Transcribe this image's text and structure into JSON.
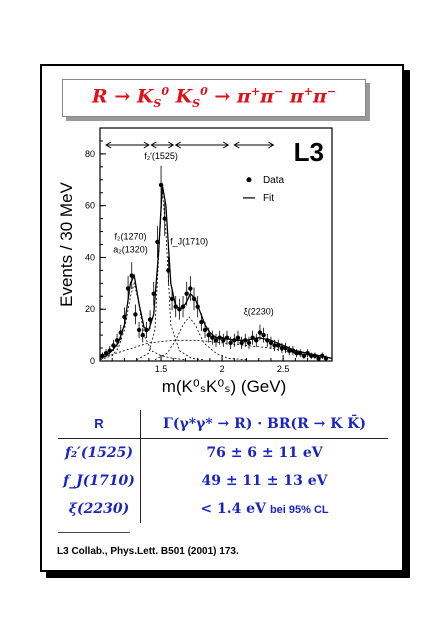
{
  "title": {
    "main": "R → K",
    "k1_sub": "S",
    "k1_sup": "0",
    "k2": "K",
    "k2_sub": "S",
    "k2_sup": "0",
    "rest": "→ π",
    "p1": "+",
    "pi2": "π",
    "p2": "−",
    "pi3": " π",
    "p3": "+",
    "pi4": "π",
    "p4": "−"
  },
  "chart_data": {
    "type": "scatter",
    "experiment_label": "L3",
    "ylabel": "Events / 30 MeV",
    "xlabel": "m(K⁰ₛK⁰ₛ) (GeV)",
    "xlim": [
      1.0,
      2.9
    ],
    "ylim": [
      0,
      90
    ],
    "x_ticks": [
      "1.5",
      "2",
      "2.5"
    ],
    "y_ticks": [
      "0",
      "20",
      "40",
      "60",
      "80"
    ],
    "legend": {
      "data": "Data",
      "fit": "Fit",
      "position": "top-right"
    },
    "annotations": [
      {
        "text": "f₂′(1525)",
        "x": 1.5,
        "y": 78
      },
      {
        "text": "f₂(1270)",
        "x": 1.25,
        "y": 47
      },
      {
        "text": "a₂(1320)",
        "x": 1.25,
        "y": 42
      },
      {
        "text": "f_J(1710)",
        "x": 1.73,
        "y": 45
      },
      {
        "text": "ξ(2230)",
        "x": 2.3,
        "y": 18
      }
    ],
    "arrows": [
      [
        1.05,
        1.4
      ],
      [
        1.42,
        1.6
      ],
      [
        1.62,
        2.05
      ],
      [
        2.1,
        2.42
      ]
    ],
    "series": [
      {
        "name": "Data",
        "x": [
          1.02,
          1.05,
          1.08,
          1.11,
          1.14,
          1.17,
          1.2,
          1.23,
          1.26,
          1.29,
          1.32,
          1.35,
          1.38,
          1.41,
          1.44,
          1.47,
          1.5,
          1.53,
          1.56,
          1.59,
          1.62,
          1.65,
          1.68,
          1.71,
          1.74,
          1.77,
          1.8,
          1.83,
          1.86,
          1.89,
          1.92,
          1.95,
          1.98,
          2.01,
          2.04,
          2.07,
          2.1,
          2.13,
          2.16,
          2.19,
          2.22,
          2.25,
          2.28,
          2.31,
          2.34,
          2.37,
          2.4,
          2.43,
          2.46,
          2.49,
          2.52,
          2.55,
          2.58,
          2.61,
          2.64,
          2.67,
          2.7,
          2.73,
          2.76,
          2.79,
          2.82,
          2.85
        ],
        "y": [
          2,
          3,
          4,
          6,
          8,
          11,
          17,
          28,
          33,
          18,
          12,
          10,
          12,
          16,
          26,
          46,
          68,
          55,
          35,
          24,
          21,
          20,
          21,
          26,
          28,
          24,
          21,
          15,
          12,
          10,
          9,
          8,
          9,
          8,
          9,
          7,
          8,
          9,
          7,
          8,
          7,
          9,
          8,
          11,
          10,
          8,
          7,
          6,
          6,
          5,
          5,
          4,
          4,
          3,
          3,
          2,
          3,
          2,
          2,
          1,
          2,
          1
        ]
      }
    ],
    "fit_curve": {
      "x": [
        1.0,
        1.05,
        1.1,
        1.15,
        1.2,
        1.25,
        1.28,
        1.32,
        1.36,
        1.4,
        1.44,
        1.48,
        1.51,
        1.54,
        1.58,
        1.62,
        1.66,
        1.7,
        1.74,
        1.78,
        1.82,
        1.86,
        1.9,
        1.95,
        2.0,
        2.1,
        2.2,
        2.3,
        2.4,
        2.5,
        2.6,
        2.7,
        2.8,
        2.9
      ],
      "y": [
        1,
        2,
        4,
        7,
        14,
        30,
        33,
        22,
        13,
        12,
        18,
        42,
        68,
        60,
        30,
        21,
        20,
        22,
        26,
        24,
        19,
        14,
        11,
        9,
        9,
        8,
        8,
        9,
        8,
        6,
        4,
        3,
        2,
        1
      ]
    },
    "component_curves": [
      {
        "x": [
          1.0,
          1.1,
          1.15,
          1.2,
          1.25,
          1.28,
          1.31,
          1.36,
          1.42,
          1.5,
          1.6,
          1.7
        ],
        "y": [
          0.5,
          2,
          5,
          12,
          25,
          30,
          24,
          10,
          4,
          2,
          1,
          0.5
        ]
      },
      {
        "x": [
          1.3,
          1.4,
          1.45,
          1.48,
          1.51,
          1.54,
          1.58,
          1.65,
          1.75,
          1.85
        ],
        "y": [
          0.5,
          3,
          12,
          40,
          66,
          50,
          14,
          4,
          1,
          0.5
        ]
      },
      {
        "x": [
          1.45,
          1.55,
          1.62,
          1.68,
          1.73,
          1.78,
          1.85,
          1.95,
          2.05,
          2.2
        ],
        "y": [
          0.5,
          3,
          8,
          14,
          17,
          14,
          7,
          3,
          1,
          0.5
        ]
      },
      {
        "x": [
          1.0,
          1.2,
          1.4,
          1.6,
          1.8,
          2.0,
          2.2,
          2.4,
          2.6,
          2.9
        ],
        "y": [
          1,
          4,
          7,
          8,
          8,
          7,
          6,
          5,
          3,
          1
        ]
      }
    ]
  },
  "table": {
    "header": {
      "c1": "R",
      "c2": "Γ(γ*γ* → R) · BR(R → K K̄)"
    },
    "rows": [
      {
        "name": "f₂′(1525)",
        "value": "76 ± 6 ± 11 eV",
        "note": ""
      },
      {
        "name": "f_J(1710)",
        "value": "49 ± 11 ± 13 eV",
        "note": ""
      },
      {
        "name": "ξ(2230)",
        "value": "< 1.4 eV",
        "note": "bei 95% CL"
      }
    ]
  },
  "reference": "L3 Collab., Phys.Lett. B501 (2001) 173."
}
